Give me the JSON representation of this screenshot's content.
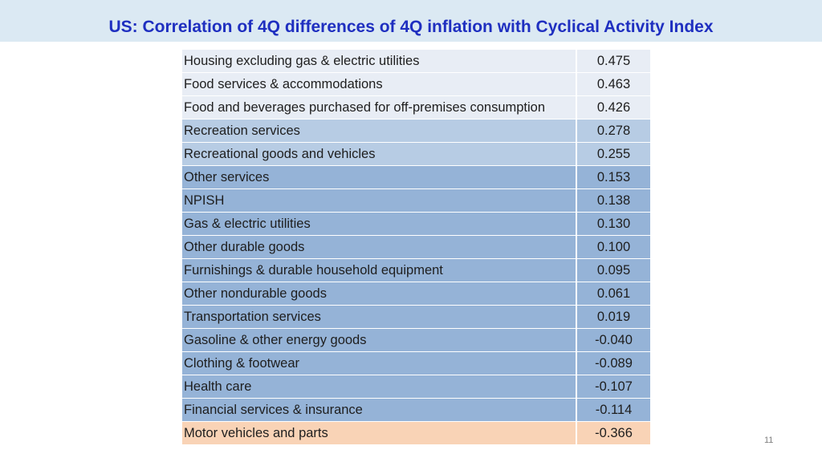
{
  "slide": {
    "title": "US: Correlation of 4Q differences of 4Q inflation with Cyclical Activity Index",
    "page_number": "11"
  },
  "colors": {
    "title_band": "#dbe9f3",
    "title_text": "#1f2fc0",
    "tier_light": "#e8edf5",
    "tier_mid": "#b7cce4",
    "tier_dark": "#95b3d7",
    "tier_negative_strong": "#f9d3b6"
  },
  "table": {
    "rows": [
      {
        "label": "Housing excluding gas & electric utilities",
        "value": "0.475",
        "tier": "light"
      },
      {
        "label": "Food services & accommodations",
        "value": "0.463",
        "tier": "light"
      },
      {
        "label": "Food and beverages purchased for off-premises consumption",
        "value": "0.426",
        "tier": "light"
      },
      {
        "label": "Recreation services",
        "value": "0.278",
        "tier": "mid"
      },
      {
        "label": "Recreational goods and vehicles",
        "value": "0.255",
        "tier": "mid"
      },
      {
        "label": "Other services",
        "value": "0.153",
        "tier": "dark"
      },
      {
        "label": "NPISH",
        "value": "0.138",
        "tier": "dark"
      },
      {
        "label": "Gas & electric utilities",
        "value": "0.130",
        "tier": "dark"
      },
      {
        "label": "Other durable goods",
        "value": "0.100",
        "tier": "dark"
      },
      {
        "label": "Furnishings & durable household equipment",
        "value": "0.095",
        "tier": "dark"
      },
      {
        "label": "Other nondurable goods",
        "value": "0.061",
        "tier": "dark"
      },
      {
        "label": "Transportation services",
        "value": "0.019",
        "tier": "dark"
      },
      {
        "label": "Gasoline & other energy goods",
        "value": "-0.040",
        "tier": "dark"
      },
      {
        "label": "Clothing & footwear",
        "value": "-0.089",
        "tier": "dark"
      },
      {
        "label": "Health care",
        "value": "-0.107",
        "tier": "dark"
      },
      {
        "label": "Financial services & insurance",
        "value": "-0.114",
        "tier": "dark"
      },
      {
        "label": "Motor vehicles and parts",
        "value": "-0.366",
        "tier": "negative_strong"
      }
    ]
  }
}
